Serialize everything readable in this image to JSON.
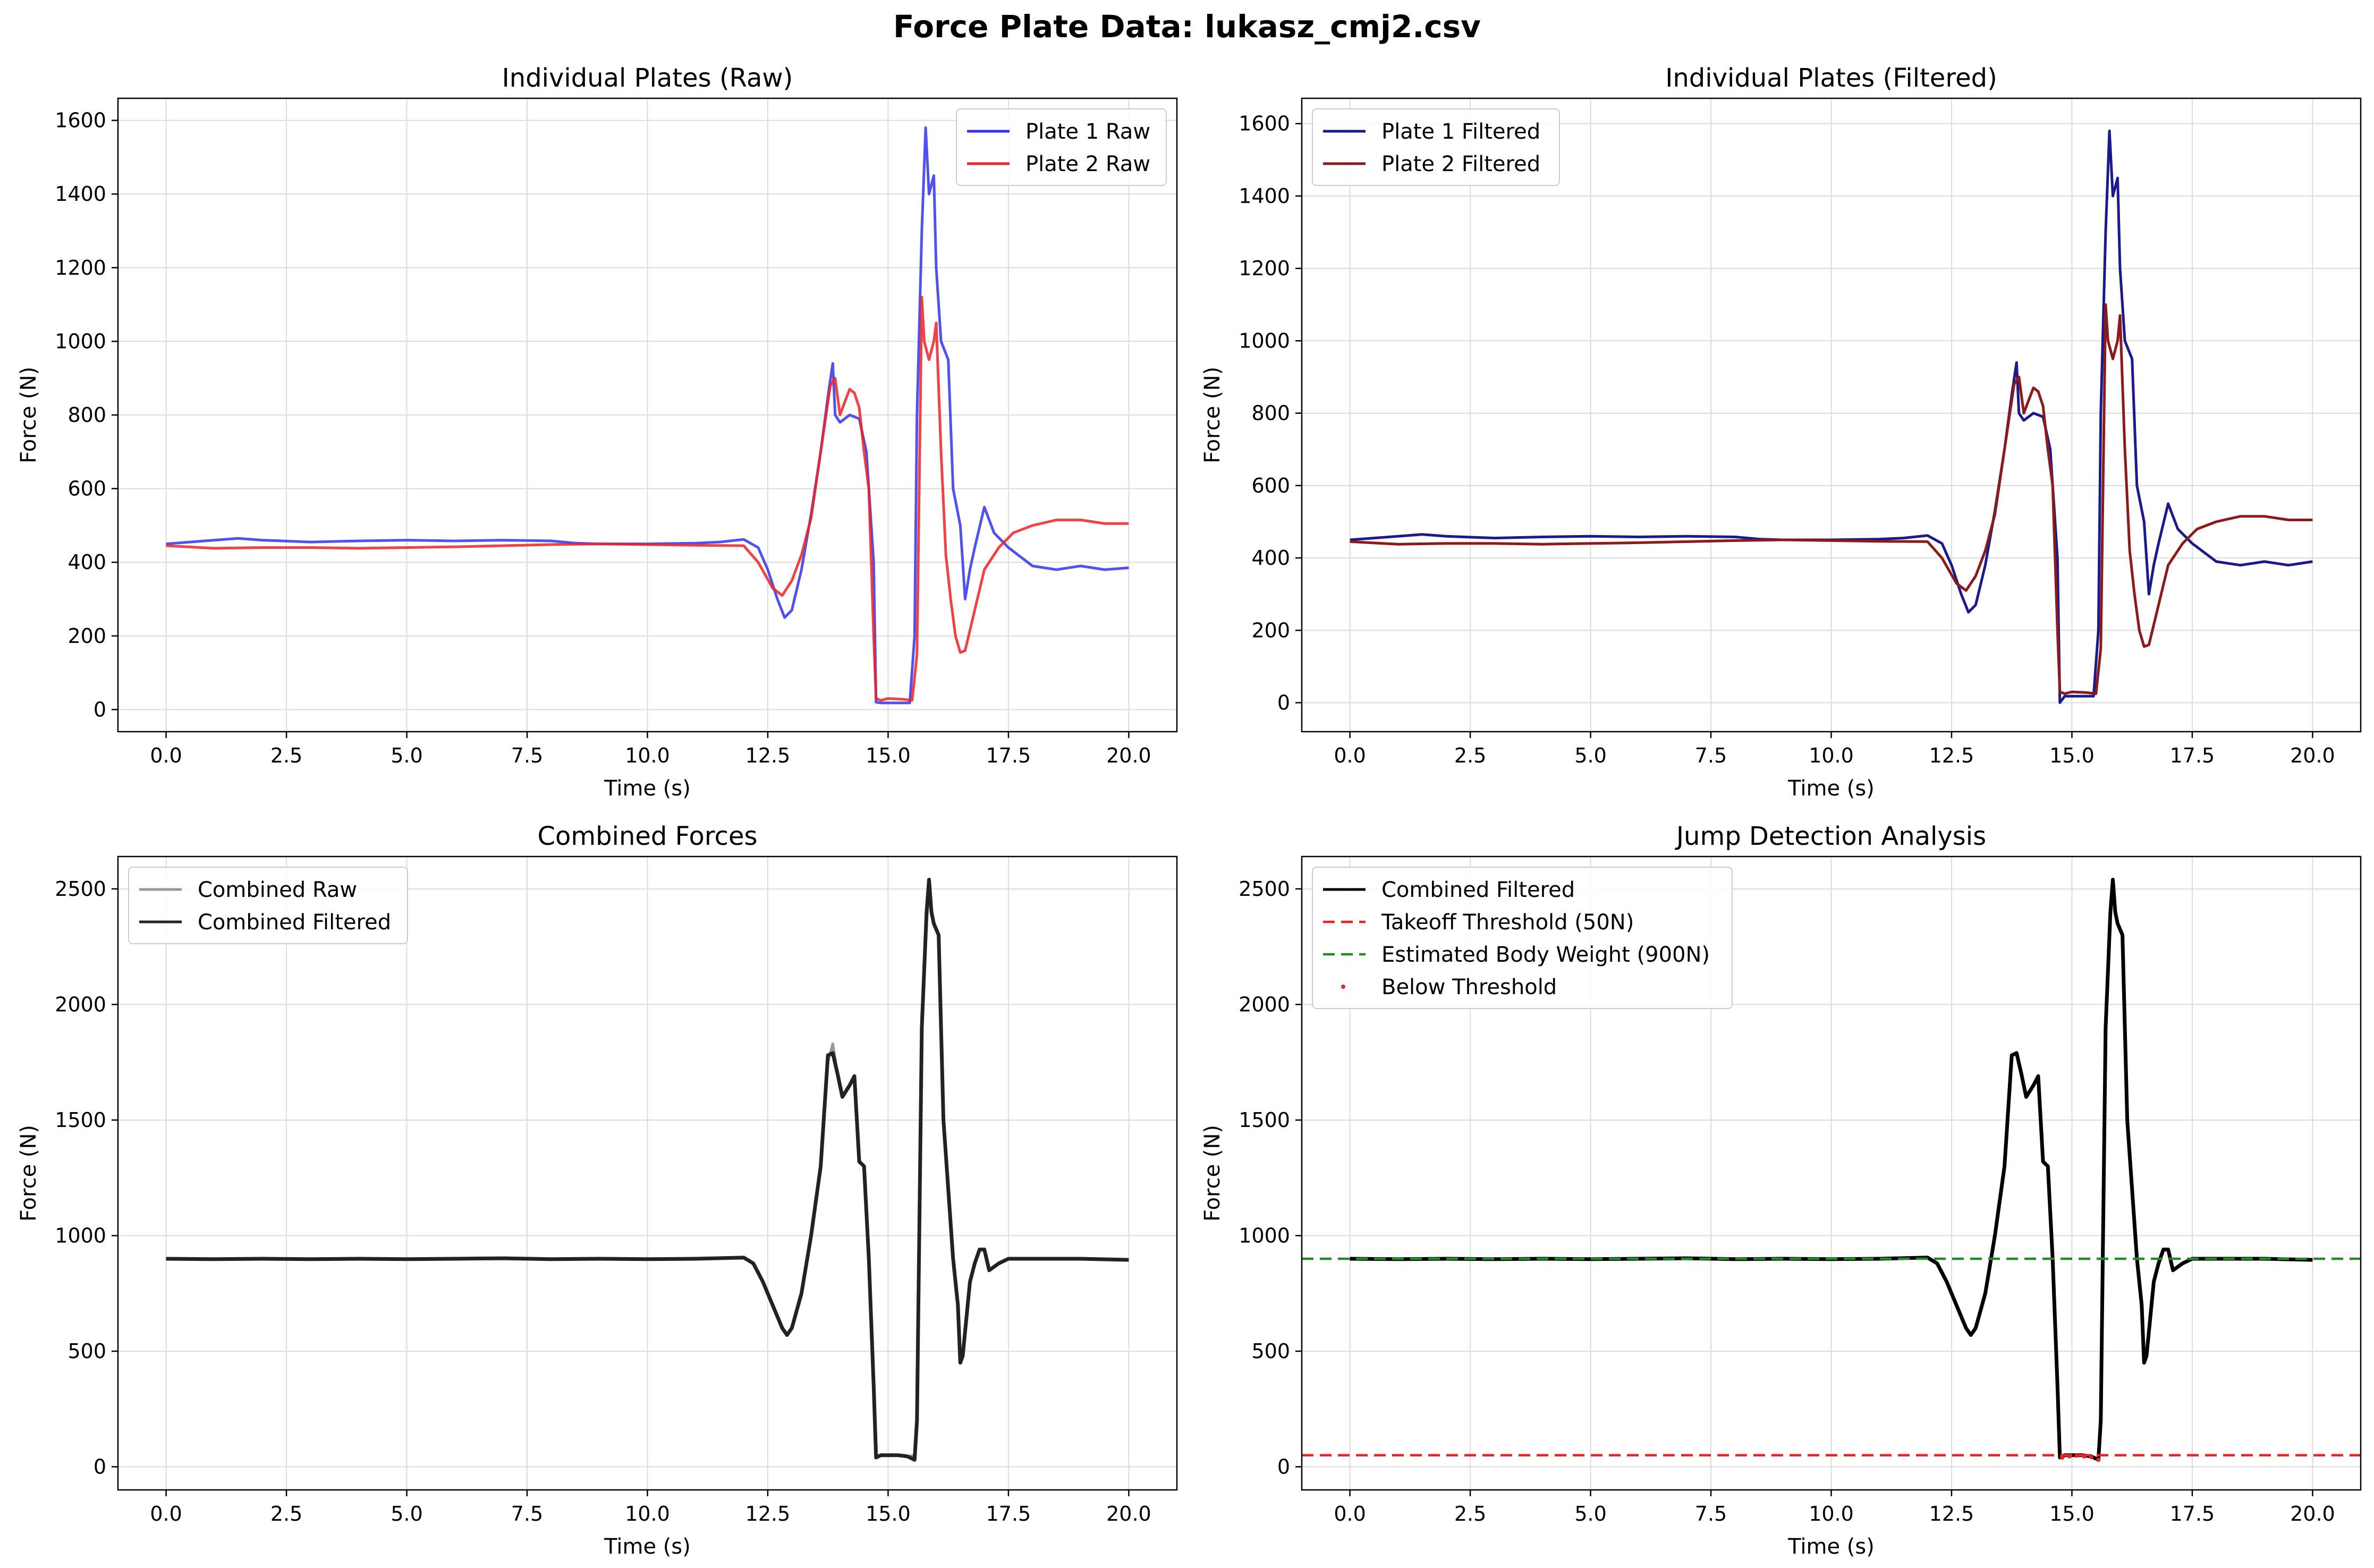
{
  "figure_title": "Force Plate Data: lukasz_cmj2.csv",
  "chart_data": [
    {
      "type": "line",
      "title": "Individual Plates (Raw)",
      "xlabel": "Time (s)",
      "ylabel": "Force (N)",
      "xlim": [
        -1.0,
        21.0
      ],
      "ylim": [
        -60,
        1660
      ],
      "xticks": [
        "0.0",
        "2.5",
        "5.0",
        "7.5",
        "10.0",
        "12.5",
        "15.0",
        "17.5",
        "20.0"
      ],
      "yticks": [
        "0",
        "200",
        "400",
        "600",
        "800",
        "1000",
        "1200",
        "1400",
        "1600"
      ],
      "grid": true,
      "legend_position": "upper right",
      "series": [
        {
          "name": "Plate 1 Raw",
          "color": "#3333ee",
          "style": "solid",
          "x": [
            0,
            1,
            1.5,
            2,
            3,
            4,
            5,
            6,
            7,
            8,
            8.5,
            9,
            10,
            11,
            11.5,
            12,
            12.3,
            12.5,
            12.7,
            12.85,
            13.0,
            13.2,
            13.4,
            13.6,
            13.75,
            13.85,
            13.9,
            14.0,
            14.2,
            14.4,
            14.55,
            14.7,
            14.75,
            14.85,
            15.0,
            15.2,
            15.45,
            15.55,
            15.6,
            15.7,
            15.78,
            15.85,
            15.95,
            16.0,
            16.1,
            16.25,
            16.35,
            16.5,
            16.6,
            16.7,
            16.8,
            17.0,
            17.2,
            17.5,
            18.0,
            18.5,
            19.0,
            19.5,
            20.0
          ],
          "y": [
            450,
            460,
            465,
            460,
            455,
            458,
            460,
            458,
            460,
            458,
            452,
            450,
            450,
            452,
            455,
            462,
            440,
            380,
            300,
            250,
            270,
            380,
            530,
            700,
            850,
            940,
            800,
            780,
            800,
            790,
            700,
            400,
            20,
            18,
            18,
            18,
            18,
            200,
            800,
            1300,
            1580,
            1400,
            1450,
            1200,
            1000,
            950,
            600,
            500,
            300,
            380,
            440,
            550,
            480,
            440,
            390,
            380,
            390,
            380,
            385
          ]
        },
        {
          "name": "Plate 2 Raw",
          "color": "#ee2222",
          "style": "solid",
          "x": [
            0,
            1,
            2,
            3,
            4,
            5,
            6,
            7,
            8,
            9,
            10,
            11,
            12,
            12.3,
            12.6,
            12.8,
            13.0,
            13.2,
            13.4,
            13.6,
            13.8,
            13.9,
            14.0,
            14.2,
            14.3,
            14.4,
            14.5,
            14.6,
            14.7,
            14.75,
            14.85,
            15.0,
            15.3,
            15.5,
            15.6,
            15.7,
            15.75,
            15.85,
            15.95,
            16.0,
            16.1,
            16.2,
            16.3,
            16.4,
            16.5,
            16.6,
            16.8,
            17.0,
            17.3,
            17.6,
            18.0,
            18.5,
            19.0,
            19.5,
            20.0
          ],
          "y": [
            445,
            438,
            440,
            440,
            438,
            440,
            442,
            445,
            448,
            450,
            448,
            446,
            445,
            400,
            330,
            310,
            350,
            420,
            520,
            700,
            880,
            900,
            800,
            870,
            860,
            820,
            700,
            600,
            200,
            30,
            25,
            30,
            28,
            25,
            150,
            1120,
            1000,
            950,
            1000,
            1050,
            700,
            420,
            300,
            200,
            155,
            160,
            270,
            380,
            440,
            480,
            500,
            515,
            515,
            505,
            505
          ]
        }
      ]
    },
    {
      "type": "line",
      "title": "Individual Plates (Filtered)",
      "xlabel": "Time (s)",
      "ylabel": "Force (N)",
      "xlim": [
        -1.0,
        21.0
      ],
      "ylim": [
        -80,
        1670
      ],
      "xticks": [
        "0.0",
        "2.5",
        "5.0",
        "7.5",
        "10.0",
        "12.5",
        "15.0",
        "17.5",
        "20.0"
      ],
      "yticks": [
        "0",
        "200",
        "400",
        "600",
        "800",
        "1000",
        "1200",
        "1400",
        "1600"
      ],
      "grid": true,
      "legend_position": "upper left",
      "series": [
        {
          "name": "Plate 1 Filtered",
          "color": "#1a1a8c",
          "style": "solid",
          "x": [
            0,
            1,
            1.5,
            2,
            3,
            4,
            5,
            6,
            7,
            8,
            8.5,
            9,
            10,
            11,
            11.5,
            12,
            12.3,
            12.5,
            12.7,
            12.85,
            13.0,
            13.2,
            13.4,
            13.6,
            13.75,
            13.85,
            13.9,
            14.0,
            14.2,
            14.4,
            14.55,
            14.7,
            14.75,
            14.85,
            15.0,
            15.2,
            15.45,
            15.55,
            15.6,
            15.7,
            15.78,
            15.85,
            15.95,
            16.0,
            16.1,
            16.25,
            16.35,
            16.5,
            16.6,
            16.7,
            16.8,
            17.0,
            17.2,
            17.5,
            18.0,
            18.5,
            19.0,
            19.5,
            20.0
          ],
          "y": [
            450,
            460,
            465,
            460,
            455,
            458,
            460,
            458,
            460,
            458,
            452,
            450,
            450,
            452,
            455,
            462,
            440,
            380,
            300,
            250,
            270,
            380,
            530,
            700,
            850,
            940,
            800,
            780,
            800,
            790,
            700,
            400,
            0,
            18,
            18,
            18,
            18,
            200,
            800,
            1300,
            1580,
            1400,
            1450,
            1200,
            1000,
            950,
            600,
            500,
            300,
            380,
            440,
            550,
            480,
            440,
            390,
            380,
            390,
            380,
            390
          ]
        },
        {
          "name": "Plate 2 Filtered",
          "color": "#8b1a1a",
          "style": "solid",
          "x": [
            0,
            1,
            2,
            3,
            4,
            5,
            6,
            7,
            8,
            9,
            10,
            11,
            12,
            12.3,
            12.6,
            12.8,
            13.0,
            13.2,
            13.4,
            13.6,
            13.8,
            13.9,
            14.0,
            14.2,
            14.3,
            14.4,
            14.5,
            14.6,
            14.7,
            14.75,
            14.85,
            15.0,
            15.3,
            15.5,
            15.6,
            15.7,
            15.75,
            15.85,
            15.95,
            16.0,
            16.1,
            16.2,
            16.3,
            16.4,
            16.5,
            16.6,
            16.8,
            17.0,
            17.3,
            17.6,
            18.0,
            18.5,
            19.0,
            19.5,
            20.0
          ],
          "y": [
            445,
            438,
            440,
            440,
            438,
            440,
            442,
            445,
            448,
            450,
            448,
            446,
            445,
            400,
            330,
            310,
            350,
            420,
            520,
            700,
            880,
            900,
            800,
            870,
            860,
            820,
            700,
            600,
            200,
            30,
            25,
            30,
            28,
            25,
            150,
            1100,
            1000,
            950,
            1000,
            1070,
            700,
            420,
            300,
            200,
            155,
            160,
            270,
            380,
            440,
            480,
            500,
            515,
            515,
            505,
            505
          ]
        }
      ]
    },
    {
      "type": "line",
      "title": "Combined Forces",
      "xlabel": "Time (s)",
      "ylabel": "Force (N)",
      "xlim": [
        -1.0,
        21.0
      ],
      "ylim": [
        -100,
        2640
      ],
      "xticks": [
        "0.0",
        "2.5",
        "5.0",
        "7.5",
        "10.0",
        "12.5",
        "15.0",
        "17.5",
        "20.0"
      ],
      "yticks": [
        "0",
        "500",
        "1000",
        "1500",
        "2000",
        "2500"
      ],
      "grid": true,
      "legend_position": "upper left",
      "series": [
        {
          "name": "Combined Raw",
          "color": "#999999",
          "style": "solid",
          "x": [
            0,
            1,
            2,
            3,
            4,
            5,
            6,
            7,
            8,
            9,
            10,
            11,
            12,
            12.2,
            12.4,
            12.6,
            12.8,
            12.9,
            13.0,
            13.2,
            13.4,
            13.6,
            13.75,
            13.85,
            13.95,
            14.05,
            14.2,
            14.3,
            14.4,
            14.5,
            14.6,
            14.7,
            14.75,
            14.85,
            15.0,
            15.2,
            15.4,
            15.55,
            15.6,
            15.7,
            15.8,
            15.85,
            15.9,
            15.95,
            16.05,
            16.15,
            16.25,
            16.35,
            16.45,
            16.5,
            16.55,
            16.7,
            16.8,
            16.9,
            17.0,
            17.1,
            17.3,
            17.5,
            18.0,
            19.0,
            20.0
          ],
          "y": [
            900,
            898,
            900,
            898,
            900,
            898,
            900,
            902,
            898,
            900,
            898,
            900,
            905,
            880,
            800,
            700,
            600,
            570,
            600,
            750,
            1000,
            1300,
            1750,
            1830,
            1700,
            1600,
            1650,
            1680,
            1320,
            1300,
            900,
            350,
            40,
            50,
            50,
            50,
            45,
            50,
            200,
            1900,
            2350,
            2500,
            2400,
            2350,
            2300,
            1500,
            1200,
            900,
            700,
            450,
            480,
            800,
            880,
            940,
            940,
            850,
            880,
            900,
            900,
            900,
            895
          ]
        },
        {
          "name": "Combined Filtered",
          "color": "#222222",
          "style": "solid",
          "x": [
            0,
            1,
            2,
            3,
            4,
            5,
            6,
            7,
            8,
            9,
            10,
            11,
            12,
            12.2,
            12.4,
            12.6,
            12.8,
            12.9,
            13.0,
            13.2,
            13.4,
            13.6,
            13.75,
            13.85,
            13.95,
            14.05,
            14.2,
            14.3,
            14.4,
            14.5,
            14.6,
            14.7,
            14.75,
            14.85,
            15.0,
            15.2,
            15.4,
            15.55,
            15.6,
            15.7,
            15.8,
            15.85,
            15.9,
            15.95,
            16.05,
            16.15,
            16.25,
            16.35,
            16.45,
            16.5,
            16.55,
            16.7,
            16.8,
            16.9,
            17.0,
            17.1,
            17.3,
            17.5,
            18.0,
            19.0,
            20.0
          ],
          "y": [
            900,
            898,
            900,
            898,
            900,
            898,
            900,
            902,
            898,
            900,
            898,
            900,
            905,
            880,
            800,
            700,
            600,
            570,
            600,
            750,
            1000,
            1300,
            1780,
            1790,
            1700,
            1600,
            1650,
            1690,
            1320,
            1300,
            900,
            350,
            40,
            50,
            50,
            50,
            45,
            30,
            200,
            1900,
            2400,
            2540,
            2400,
            2350,
            2300,
            1500,
            1200,
            900,
            700,
            450,
            480,
            800,
            880,
            940,
            940,
            850,
            880,
            900,
            900,
            900,
            895
          ]
        }
      ]
    },
    {
      "type": "line",
      "title": "Jump Detection Analysis",
      "xlabel": "Time (s)",
      "ylabel": "Force (N)",
      "xlim": [
        -1.0,
        21.0
      ],
      "ylim": [
        -100,
        2640
      ],
      "xticks": [
        "0.0",
        "2.5",
        "5.0",
        "7.5",
        "10.0",
        "12.5",
        "15.0",
        "17.5",
        "20.0"
      ],
      "yticks": [
        "0",
        "500",
        "1000",
        "1500",
        "2000",
        "2500"
      ],
      "grid": true,
      "legend_position": "upper left",
      "series": [
        {
          "name": "Combined Filtered",
          "color": "#000000",
          "style": "solid",
          "x": [
            0,
            1,
            2,
            3,
            4,
            5,
            6,
            7,
            8,
            9,
            10,
            11,
            12,
            12.2,
            12.4,
            12.6,
            12.8,
            12.9,
            13.0,
            13.2,
            13.4,
            13.6,
            13.75,
            13.85,
            13.95,
            14.05,
            14.2,
            14.3,
            14.4,
            14.5,
            14.6,
            14.7,
            14.75,
            14.85,
            15.0,
            15.2,
            15.4,
            15.55,
            15.6,
            15.7,
            15.8,
            15.85,
            15.9,
            15.95,
            16.05,
            16.15,
            16.25,
            16.35,
            16.45,
            16.5,
            16.55,
            16.7,
            16.8,
            16.9,
            17.0,
            17.1,
            17.3,
            17.5,
            18.0,
            19.0,
            20.0
          ],
          "y": [
            900,
            898,
            900,
            898,
            900,
            898,
            900,
            902,
            898,
            900,
            898,
            900,
            905,
            880,
            800,
            700,
            600,
            570,
            600,
            750,
            1000,
            1300,
            1780,
            1790,
            1700,
            1600,
            1650,
            1690,
            1320,
            1300,
            900,
            350,
            40,
            50,
            50,
            50,
            45,
            30,
            200,
            1900,
            2400,
            2540,
            2400,
            2350,
            2300,
            1500,
            1200,
            900,
            700,
            450,
            480,
            800,
            880,
            940,
            940,
            850,
            880,
            900,
            900,
            900,
            895
          ]
        },
        {
          "name": "Takeoff Threshold (50N)",
          "color": "#ee2222",
          "style": "dashed",
          "x": [
            -1.0,
            21.0
          ],
          "y": [
            50,
            50
          ]
        },
        {
          "name": "Estimated Body Weight (900N)",
          "color": "#228b22",
          "style": "dashed",
          "x": [
            -1.0,
            21.0
          ],
          "y": [
            900,
            900
          ]
        },
        {
          "name": "Below Threshold",
          "color": "#ee2222",
          "style": "markers",
          "x": [
            14.8,
            14.95,
            15.1,
            15.25,
            15.4,
            15.55
          ],
          "y": [
            40,
            45,
            48,
            45,
            42,
            30
          ]
        }
      ]
    }
  ]
}
